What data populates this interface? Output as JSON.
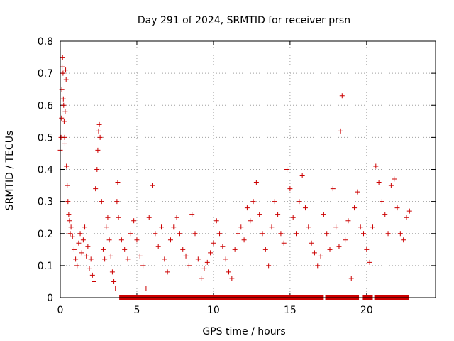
{
  "chart_data": {
    "type": "scatter",
    "title": "Day 291 of 2024, SRMTID for receiver prsn",
    "xlabel": "GPS time / hours",
    "ylabel": "SRMTID / TECUs",
    "xlim": [
      0,
      24.5
    ],
    "ylim": [
      0,
      0.8
    ],
    "xticks": [
      0,
      5,
      10,
      15,
      20
    ],
    "xtick_labels": [
      "0",
      "5",
      "10",
      "15",
      "20"
    ],
    "yticks": [
      0,
      0.1,
      0.2,
      0.3,
      0.4,
      0.5,
      0.6,
      0.7,
      0.8
    ],
    "ytick_labels": [
      "0",
      "0.1",
      "0.2",
      "0.3",
      "0.4",
      "0.5",
      "0.6",
      "0.7",
      "0.8"
    ],
    "grid": true,
    "marker": "+",
    "series": [
      {
        "name": "SRMTID",
        "color": "#cc0000",
        "points": [
          [
            0.0,
            0.46
          ],
          [
            0.05,
            0.5
          ],
          [
            0.08,
            0.56
          ],
          [
            0.1,
            0.65
          ],
          [
            0.12,
            0.72
          ],
          [
            0.15,
            0.75
          ],
          [
            0.18,
            0.7
          ],
          [
            0.2,
            0.62
          ],
          [
            0.22,
            0.6
          ],
          [
            0.25,
            0.55
          ],
          [
            0.28,
            0.5
          ],
          [
            0.3,
            0.48
          ],
          [
            0.32,
            0.58
          ],
          [
            0.35,
            0.71
          ],
          [
            0.38,
            0.68
          ],
          [
            0.4,
            0.41
          ],
          [
            0.45,
            0.35
          ],
          [
            0.5,
            0.3
          ],
          [
            0.55,
            0.26
          ],
          [
            0.6,
            0.24
          ],
          [
            0.65,
            0.2
          ],
          [
            0.7,
            0.22
          ],
          [
            0.8,
            0.19
          ],
          [
            0.9,
            0.15
          ],
          [
            1.0,
            0.12
          ],
          [
            1.1,
            0.1
          ],
          [
            1.2,
            0.17
          ],
          [
            1.3,
            0.2
          ],
          [
            1.4,
            0.14
          ],
          [
            1.5,
            0.18
          ],
          [
            1.6,
            0.22
          ],
          [
            1.7,
            0.13
          ],
          [
            1.8,
            0.16
          ],
          [
            1.9,
            0.09
          ],
          [
            2.0,
            0.12
          ],
          [
            2.1,
            0.07
          ],
          [
            2.2,
            0.05
          ],
          [
            2.3,
            0.34
          ],
          [
            2.4,
            0.4
          ],
          [
            2.45,
            0.46
          ],
          [
            2.5,
            0.52
          ],
          [
            2.55,
            0.54
          ],
          [
            2.6,
            0.5
          ],
          [
            2.7,
            0.3
          ],
          [
            2.8,
            0.15
          ],
          [
            2.9,
            0.12
          ],
          [
            3.0,
            0.22
          ],
          [
            3.1,
            0.25
          ],
          [
            3.2,
            0.18
          ],
          [
            3.3,
            0.13
          ],
          [
            3.4,
            0.08
          ],
          [
            3.5,
            0.05
          ],
          [
            3.6,
            0.03
          ],
          [
            3.7,
            0.3
          ],
          [
            3.75,
            0.36
          ],
          [
            3.8,
            0.25
          ],
          [
            4.0,
            0.18
          ],
          [
            4.2,
            0.15
          ],
          [
            4.4,
            0.12
          ],
          [
            4.6,
            0.2
          ],
          [
            4.8,
            0.24
          ],
          [
            5.0,
            0.18
          ],
          [
            5.2,
            0.13
          ],
          [
            5.4,
            0.1
          ],
          [
            5.6,
            0.03
          ],
          [
            5.8,
            0.25
          ],
          [
            6.0,
            0.35
          ],
          [
            6.2,
            0.2
          ],
          [
            6.4,
            0.16
          ],
          [
            6.6,
            0.22
          ],
          [
            6.8,
            0.12
          ],
          [
            7.0,
            0.08
          ],
          [
            7.2,
            0.18
          ],
          [
            7.4,
            0.22
          ],
          [
            7.6,
            0.25
          ],
          [
            7.8,
            0.2
          ],
          [
            8.0,
            0.15
          ],
          [
            8.2,
            0.13
          ],
          [
            8.4,
            0.1
          ],
          [
            8.6,
            0.26
          ],
          [
            8.8,
            0.2
          ],
          [
            9.0,
            0.12
          ],
          [
            9.2,
            0.06
          ],
          [
            9.4,
            0.09
          ],
          [
            9.6,
            0.11
          ],
          [
            9.8,
            0.14
          ],
          [
            10.0,
            0.17
          ],
          [
            10.2,
            0.24
          ],
          [
            10.4,
            0.2
          ],
          [
            10.6,
            0.16
          ],
          [
            10.8,
            0.12
          ],
          [
            11.0,
            0.08
          ],
          [
            11.2,
            0.06
          ],
          [
            11.4,
            0.15
          ],
          [
            11.6,
            0.2
          ],
          [
            11.8,
            0.22
          ],
          [
            12.0,
            0.18
          ],
          [
            12.2,
            0.28
          ],
          [
            12.4,
            0.24
          ],
          [
            12.6,
            0.3
          ],
          [
            12.8,
            0.36
          ],
          [
            13.0,
            0.26
          ],
          [
            13.2,
            0.2
          ],
          [
            13.4,
            0.15
          ],
          [
            13.6,
            0.1
          ],
          [
            13.8,
            0.22
          ],
          [
            14.0,
            0.3
          ],
          [
            14.2,
            0.26
          ],
          [
            14.4,
            0.2
          ],
          [
            14.6,
            0.17
          ],
          [
            14.8,
            0.4
          ],
          [
            15.0,
            0.34
          ],
          [
            15.2,
            0.25
          ],
          [
            15.4,
            0.2
          ],
          [
            15.6,
            0.3
          ],
          [
            15.8,
            0.38
          ],
          [
            16.0,
            0.28
          ],
          [
            16.2,
            0.22
          ],
          [
            16.4,
            0.17
          ],
          [
            16.6,
            0.14
          ],
          [
            16.8,
            0.1
          ],
          [
            17.0,
            0.13
          ],
          [
            17.2,
            0.26
          ],
          [
            17.4,
            0.2
          ],
          [
            17.6,
            0.15
          ],
          [
            17.8,
            0.34
          ],
          [
            18.0,
            0.22
          ],
          [
            18.2,
            0.16
          ],
          [
            18.3,
            0.52
          ],
          [
            18.4,
            0.63
          ],
          [
            18.6,
            0.18
          ],
          [
            18.8,
            0.24
          ],
          [
            19.0,
            0.06
          ],
          [
            19.2,
            0.28
          ],
          [
            19.4,
            0.33
          ],
          [
            19.6,
            0.22
          ],
          [
            19.8,
            0.2
          ],
          [
            20.0,
            0.15
          ],
          [
            20.2,
            0.11
          ],
          [
            20.4,
            0.22
          ],
          [
            20.6,
            0.41
          ],
          [
            20.8,
            0.36
          ],
          [
            21.0,
            0.3
          ],
          [
            21.2,
            0.26
          ],
          [
            21.4,
            0.2
          ],
          [
            21.6,
            0.35
          ],
          [
            21.8,
            0.37
          ],
          [
            22.0,
            0.28
          ],
          [
            22.2,
            0.2
          ],
          [
            22.4,
            0.18
          ],
          [
            22.6,
            0.25
          ],
          [
            22.8,
            0.27
          ]
        ]
      },
      {
        "name": "zero-values",
        "color": "#cc0000",
        "segments": [
          [
            3.85,
            17.2
          ],
          [
            17.3,
            19.5
          ],
          [
            19.75,
            20.4
          ],
          [
            20.5,
            22.75
          ]
        ]
      }
    ]
  }
}
